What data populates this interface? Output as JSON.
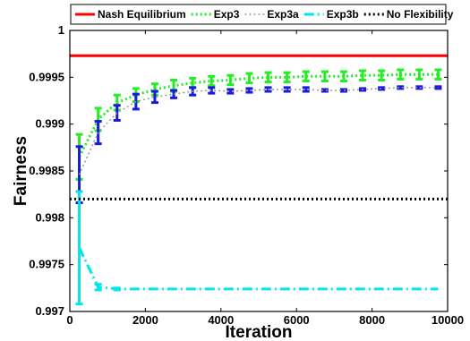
{
  "chart_data": {
    "type": "line",
    "title": "",
    "xlabel": "Iteration",
    "ylabel": "Fairness",
    "xlim": [
      0,
      10000
    ],
    "ylim": [
      0.997,
      1.0
    ],
    "xticks": [
      0,
      2000,
      4000,
      6000,
      8000,
      10000
    ],
    "xtick_labels": [
      "0",
      "2000",
      "4000",
      "6000",
      "8000",
      "10000"
    ],
    "yticks": [
      0.997,
      0.9975,
      0.998,
      0.9985,
      0.999,
      0.9995,
      1.0
    ],
    "ytick_labels": [
      "0.997",
      "0.9975",
      "0.998",
      "0.9985",
      "0.999",
      "0.9995",
      "1"
    ],
    "grid": false,
    "legend_position": "top",
    "series": [
      {
        "name": "Nash Equilibrium",
        "color": "#ff0000",
        "style": "solid",
        "x": [
          0,
          10000
        ],
        "y": [
          0.99973,
          0.99973
        ]
      },
      {
        "name": "Exp3",
        "color": "#22ee22",
        "style": "dotted",
        "x": [
          250,
          750,
          1250,
          1750,
          2250,
          2750,
          3250,
          3750,
          4250,
          4750,
          5250,
          5750,
          6250,
          6750,
          7250,
          7750,
          8250,
          8750,
          9250,
          9750
        ],
        "y": [
          0.99865,
          0.99905,
          0.99923,
          0.99931,
          0.99937,
          0.99941,
          0.99944,
          0.99946,
          0.99947,
          0.99949,
          0.9995,
          0.9995,
          0.99951,
          0.99951,
          0.99951,
          0.99952,
          0.99952,
          0.99953,
          0.99953,
          0.99953
        ],
        "err": [
          0.00024,
          0.00012,
          8e-05,
          7e-05,
          6e-05,
          6e-05,
          5e-05,
          5e-05,
          5e-05,
          5e-05,
          5e-05,
          5e-05,
          5e-05,
          5e-05,
          5e-05,
          5e-05,
          5e-05,
          5e-05,
          5e-05,
          5e-05
        ]
      },
      {
        "name": "Exp3a",
        "color": "#999999",
        "style": "dotted",
        "x": [
          250,
          750,
          1250,
          1750,
          2250,
          2750,
          3250,
          3750,
          4250,
          4750,
          5250,
          5750,
          6250,
          6750,
          7250,
          7750,
          8250,
          8750,
          9250,
          9750
        ],
        "y": [
          0.99846,
          0.99891,
          0.99912,
          0.99924,
          0.99929,
          0.99932,
          0.99935,
          0.99936,
          0.99935,
          0.99936,
          0.99937,
          0.99937,
          0.99937,
          0.99936,
          0.99936,
          0.99937,
          0.99938,
          0.99939,
          0.99939,
          0.99939
        ],
        "err": [
          0.0003,
          0.00012,
          8e-05,
          8e-05,
          6e-05,
          4e-05,
          4e-05,
          3e-05,
          2e-05,
          2e-05,
          2e-05,
          2e-05,
          2e-05,
          1e-05,
          1e-05,
          1e-05,
          1e-05,
          1e-05,
          1e-05,
          1e-05
        ]
      },
      {
        "name": "Exp3b",
        "color": "#00e5ee",
        "style": "dashdot",
        "x": [
          250,
          750,
          1250,
          1750,
          2250,
          2750,
          3250,
          3750,
          4250,
          4750,
          5250,
          5750,
          6250,
          6750,
          7250,
          7750,
          8250,
          8750,
          9250,
          9750
        ],
        "y": [
          0.99768,
          0.99726,
          0.99724,
          0.99724,
          0.99724,
          0.99724,
          0.99724,
          0.99724,
          0.99724,
          0.99724,
          0.99724,
          0.99724,
          0.99724,
          0.99724,
          0.99724,
          0.99724,
          0.99724,
          0.99724,
          0.99724,
          0.99724
        ],
        "err": [
          0.0006,
          3e-05,
          1e-05,
          0,
          0,
          0,
          0,
          0,
          0,
          0,
          0,
          0,
          0,
          0,
          0,
          0,
          0,
          0,
          0,
          0
        ]
      },
      {
        "name": "No Flexibility",
        "color": "#000000",
        "style": "dotted",
        "x": [
          0,
          10000
        ],
        "y": [
          0.9982,
          0.9982
        ]
      }
    ]
  }
}
